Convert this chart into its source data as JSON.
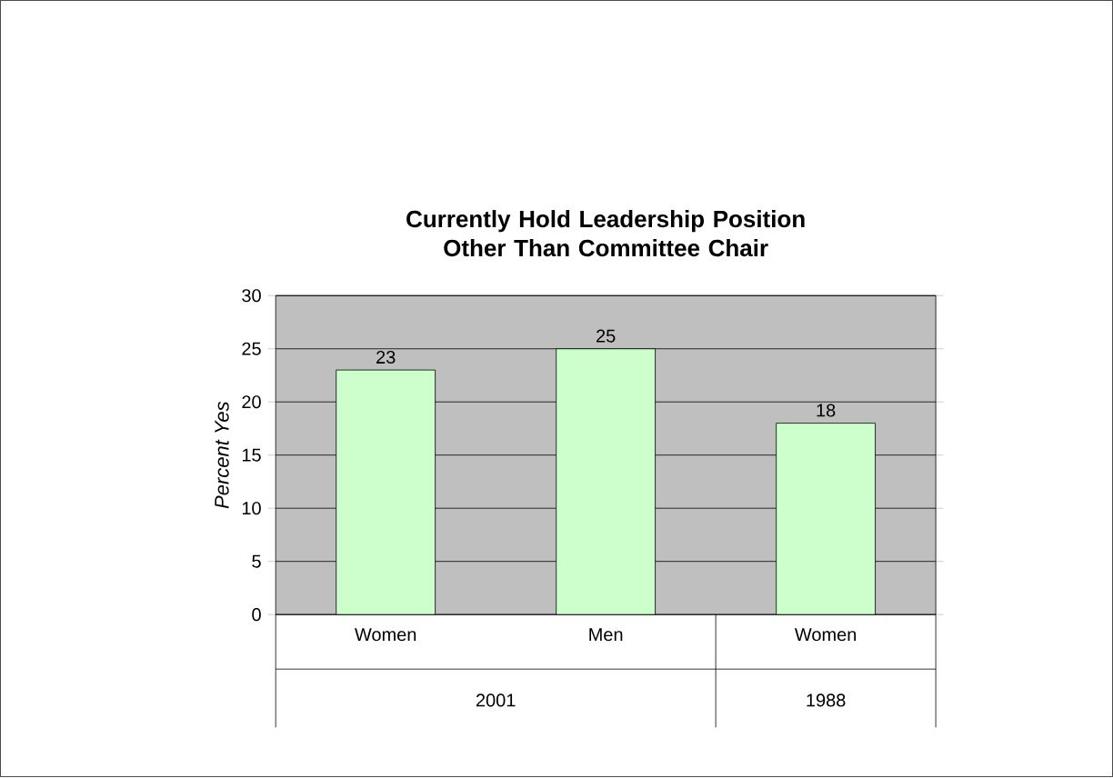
{
  "chart_data": {
    "type": "bar",
    "title": "Currently Hold Leadership Position Other Than Committee Chair",
    "ylabel": "Percent Yes",
    "categories": [
      "Women",
      "Men",
      "Women"
    ],
    "values": [
      23,
      25,
      18
    ],
    "color": "#ccffcc",
    "ylim": [
      0,
      30
    ],
    "yticks": [
      0,
      5,
      10,
      15,
      20,
      25,
      30
    ],
    "grid": "y",
    "data_labels": true,
    "annotations": [
      "2001",
      "1988"
    ]
  }
}
